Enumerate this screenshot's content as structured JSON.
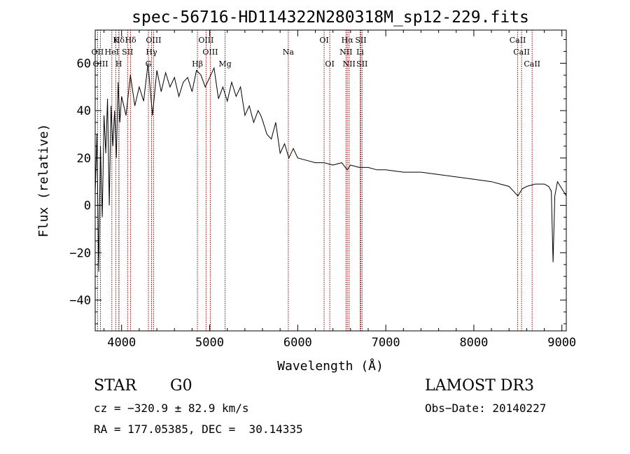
{
  "chart_data": {
    "type": "line",
    "title": "spec-56716-HD114322N280318M_sp12-229.fits",
    "xlabel": "Wavelength (Å)",
    "ylabel": "Flux (relative)",
    "xlim": [
      3700,
      9050
    ],
    "ylim": [
      -53,
      74
    ],
    "x_ticks": [
      4000,
      5000,
      6000,
      7000,
      8000,
      9000
    ],
    "y_ticks": [
      -40,
      -20,
      0,
      20,
      40,
      60
    ],
    "x_tick_labels": [
      "4000",
      "5000",
      "6000",
      "7000",
      "8000",
      "9000"
    ],
    "y_tick_labels": [
      "−40",
      "−20",
      "0",
      "20",
      "40",
      "60"
    ],
    "series": [
      {
        "name": "flux",
        "x": [
          3700,
          3720,
          3740,
          3760,
          3780,
          3800,
          3820,
          3840,
          3860,
          3880,
          3900,
          3920,
          3940,
          3960,
          3980,
          4000,
          4050,
          4100,
          4150,
          4200,
          4250,
          4300,
          4350,
          4400,
          4450,
          4500,
          4550,
          4600,
          4650,
          4700,
          4750,
          4800,
          4850,
          4900,
          4950,
          5000,
          5050,
          5100,
          5150,
          5200,
          5250,
          5300,
          5350,
          5400,
          5450,
          5500,
          5550,
          5580,
          5600,
          5650,
          5700,
          5750,
          5800,
          5850,
          5900,
          5950,
          6000,
          6100,
          6200,
          6300,
          6400,
          6500,
          6563,
          6600,
          6700,
          6800,
          6900,
          7000,
          7200,
          7400,
          7600,
          7800,
          8000,
          8200,
          8300,
          8400,
          8450,
          8500,
          8550,
          8600,
          8700,
          8800,
          8850,
          8880,
          8900,
          8920,
          8950,
          9000,
          9050
        ],
        "y": [
          5,
          30,
          -28,
          25,
          -5,
          38,
          22,
          45,
          0,
          42,
          25,
          40,
          20,
          52,
          35,
          46,
          38,
          55,
          42,
          50,
          44,
          60,
          38,
          57,
          48,
          56,
          50,
          54,
          46,
          52,
          54,
          48,
          57,
          55,
          50,
          54,
          58,
          45,
          50,
          44,
          52,
          46,
          50,
          38,
          42,
          35,
          40,
          38,
          36,
          30,
          28,
          35,
          22,
          26,
          20,
          24,
          20,
          19,
          18,
          18,
          17,
          18,
          15,
          17,
          16,
          16,
          15,
          15,
          14,
          14,
          13,
          12,
          11,
          10,
          9,
          8,
          6,
          4,
          7,
          8,
          9,
          9,
          8,
          6,
          -24,
          4,
          10,
          7,
          4
        ]
      }
    ],
    "line_markers": [
      {
        "label": "Hδ",
        "x": 3970,
        "row": 1
      },
      {
        "label": "K",
        "x": 3934,
        "row": 1
      },
      {
        "label": "Hδ",
        "x": 4102,
        "row": 1
      },
      {
        "label": "OIII",
        "x": 4363,
        "row": 1
      },
      {
        "label": "OIII",
        "x": 4959,
        "row": 1
      },
      {
        "label": "OI",
        "x": 6300,
        "row": 1
      },
      {
        "label": "Hα",
        "x": 6563,
        "row": 1
      },
      {
        "label": "SII",
        "x": 6717,
        "row": 1
      },
      {
        "label": "CaII",
        "x": 8498,
        "row": 1
      },
      {
        "label": "OII",
        "x": 3727,
        "row": 2
      },
      {
        "label": "HeI",
        "x": 3889,
        "row": 2
      },
      {
        "label": "SII",
        "x": 4068,
        "row": 2
      },
      {
        "label": "Hγ",
        "x": 4340,
        "row": 2
      },
      {
        "label": "OIII",
        "x": 5007,
        "row": 2
      },
      {
        "label": "Na",
        "x": 5893,
        "row": 2
      },
      {
        "label": "NII",
        "x": 6548,
        "row": 2
      },
      {
        "label": "Li",
        "x": 6708,
        "row": 2
      },
      {
        "label": "CaII",
        "x": 8542,
        "row": 2
      },
      {
        "label": "OIII",
        "x": 3760,
        "row": 3
      },
      {
        "label": "H",
        "x": 3968,
        "row": 3
      },
      {
        "label": "G",
        "x": 4304,
        "row": 3
      },
      {
        "label": "Hβ",
        "x": 4861,
        "row": 3
      },
      {
        "label": "Mg",
        "x": 5175,
        "row": 3
      },
      {
        "label": "OI",
        "x": 6364,
        "row": 3
      },
      {
        "label": "NII",
        "x": 6583,
        "row": 3
      },
      {
        "label": "SII",
        "x": 6731,
        "row": 3
      },
      {
        "label": "CaII",
        "x": 8662,
        "row": 3
      }
    ],
    "marker_color": "#a00000"
  },
  "info": {
    "class": "STAR",
    "subclass": "G0",
    "survey": "LAMOST DR3",
    "cz": "cz = −320.9 ± 82.9 km/s",
    "obs_date": "Obs−Date: 20140227",
    "coords": "RA = 177.05385, DEC =  30.14335"
  }
}
